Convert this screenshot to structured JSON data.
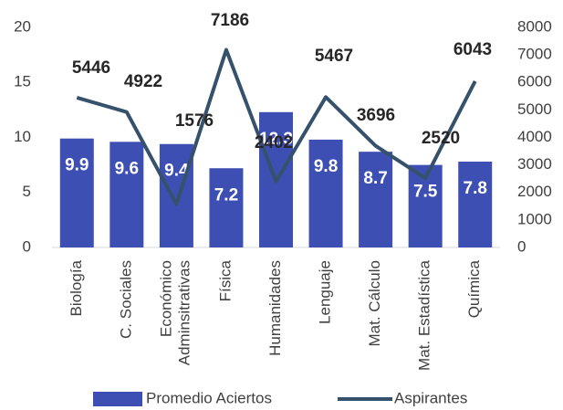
{
  "chart_data": {
    "type": "bar-line",
    "categories": [
      "Biología",
      "C. Sociales",
      "Económico Adminsitrativas",
      "Física",
      "Humanidades",
      "Lenguaje",
      "Mat. Cálculo",
      "Mat. Estadística",
      "Química"
    ],
    "series": [
      {
        "name": "Promedio Aciertos",
        "type": "bar",
        "color": "#3e4fb3",
        "axis": "y",
        "values": [
          9.9,
          9.6,
          9.4,
          7.2,
          12.3,
          9.8,
          8.7,
          7.5,
          7.8
        ]
      },
      {
        "name": "Aspirantes",
        "type": "line",
        "color": "#35516c",
        "axis": "y2",
        "values": [
          5446,
          4922,
          1576,
          7186,
          2402,
          5467,
          3696,
          2520,
          6043
        ]
      }
    ],
    "ylim": [
      0,
      20
    ],
    "yticks": [
      0,
      5,
      10,
      15,
      20
    ],
    "y2lim": [
      0,
      8000
    ],
    "y2ticks": [
      0,
      1000,
      2000,
      3000,
      4000,
      5000,
      6000,
      7000,
      8000
    ],
    "legend": "bottom"
  }
}
